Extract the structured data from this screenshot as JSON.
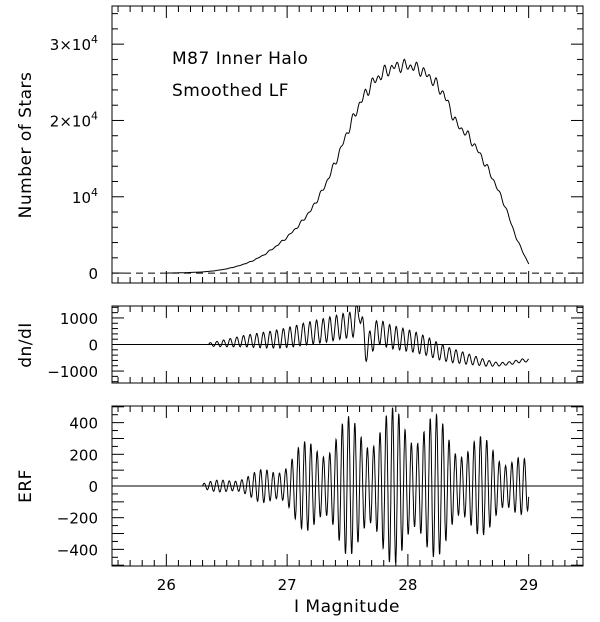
{
  "chart_data": [
    {
      "type": "line",
      "panel": "lf",
      "xlim": [
        25.55,
        29.45
      ],
      "ylim": [
        -1300,
        35000
      ],
      "ylabel": "Number of Stars",
      "xlabel": "",
      "annotations": [
        "M87 Inner Halo",
        "Smoothed LF"
      ],
      "y_ticks": [
        {
          "value": 0,
          "label": "0"
        },
        {
          "value": 10000,
          "label": "10",
          "sup": "4"
        },
        {
          "value": 20000,
          "label": "2×10",
          "sup": "4"
        },
        {
          "value": 30000,
          "label": "3×10",
          "sup": "4"
        }
      ],
      "reference_line": {
        "y": 0,
        "style": "dashed"
      },
      "series": [
        {
          "x": [
            26.0,
            26.1,
            26.2,
            26.3,
            26.4,
            26.5,
            26.6,
            26.7,
            26.8,
            26.9,
            27.0,
            27.1,
            27.2,
            27.3,
            27.4,
            27.5,
            27.6,
            27.7,
            27.8,
            27.9,
            28.0,
            28.1,
            28.2,
            28.3,
            28.4,
            28.5,
            28.6,
            28.7,
            28.8,
            28.9,
            29.0
          ],
          "values": [
            0,
            30,
            80,
            150,
            300,
            550,
            950,
            1500,
            2300,
            3400,
            4700,
            6300,
            8300,
            11000,
            14500,
            18500,
            22200,
            24800,
            26300,
            27100,
            27200,
            26700,
            25400,
            23400,
            19600,
            18000,
            15500,
            12500,
            9000,
            4500,
            1200
          ]
        }
      ]
    },
    {
      "type": "line",
      "panel": "dndi",
      "xlim": [
        25.55,
        29.45
      ],
      "ylim": [
        -1450,
        1450
      ],
      "ylabel": "dn/dI",
      "xlabel": "",
      "y_ticks": [
        {
          "value": -1000,
          "label": "−1000"
        },
        {
          "value": 0,
          "label": "0"
        },
        {
          "value": 1000,
          "label": "1000"
        }
      ],
      "reference_line": {
        "y": 0,
        "style": "solid"
      },
      "series": [
        {
          "x": [
            26.35,
            26.45,
            26.55,
            26.65,
            26.75,
            26.85,
            26.95,
            27.05,
            27.15,
            27.25,
            27.35,
            27.45,
            27.55,
            27.6,
            27.65,
            27.75,
            27.85,
            27.95,
            28.05,
            28.15,
            28.25,
            28.35,
            28.45,
            28.55,
            28.65,
            28.75,
            28.85,
            28.95,
            29.0
          ],
          "values": [
            0,
            30,
            80,
            130,
            150,
            180,
            220,
            300,
            400,
            480,
            570,
            680,
            760,
            1400,
            -200,
            500,
            300,
            200,
            100,
            -50,
            -250,
            -400,
            -500,
            -600,
            -700,
            -750,
            -700,
            -600,
            -600
          ]
        }
      ]
    },
    {
      "type": "line",
      "panel": "erf",
      "xlim": [
        25.55,
        29.45
      ],
      "ylim": [
        -505,
        505
      ],
      "ylabel": "ERF",
      "xlabel": "I Magnitude",
      "x_ticks": [
        {
          "value": 26,
          "label": "26"
        },
        {
          "value": 27,
          "label": "27"
        },
        {
          "value": 28,
          "label": "28"
        },
        {
          "value": 29,
          "label": "29"
        }
      ],
      "y_ticks": [
        {
          "value": -400,
          "label": "−400"
        },
        {
          "value": -200,
          "label": "−200"
        },
        {
          "value": 0,
          "label": "0"
        },
        {
          "value": 200,
          "label": "200"
        },
        {
          "value": 400,
          "label": "400"
        }
      ],
      "reference_line": {
        "y": 0,
        "style": "solid"
      },
      "series": [
        {
          "x": [
            26.3,
            26.5,
            26.7,
            26.9,
            27.1,
            27.3,
            27.5,
            27.7,
            27.9,
            28.1,
            28.3,
            28.5,
            28.7,
            28.9,
            29.0
          ],
          "envelope": [
            20,
            50,
            80,
            140,
            260,
            360,
            440,
            470,
            500,
            520,
            420,
            330,
            300,
            220,
            150
          ],
          "oscillation_period": 0.052
        }
      ]
    }
  ]
}
